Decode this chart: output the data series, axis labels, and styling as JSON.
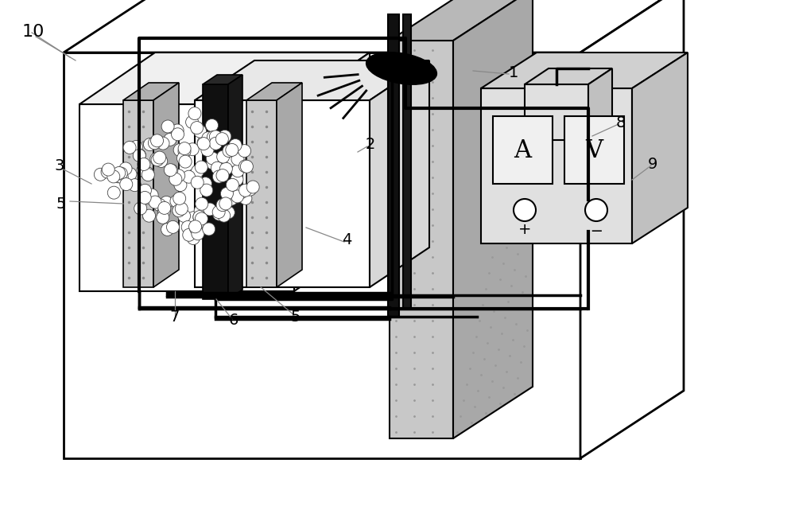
{
  "bg_color": "#ffffff",
  "gray_panel": "#c8c8c8",
  "gray_light": "#d8d8d8",
  "gray_medium": "#b8b8b8",
  "gray_dark": "#a0a0a0",
  "black": "#000000",
  "wire_color": "#000000",
  "label_color": "#000000"
}
